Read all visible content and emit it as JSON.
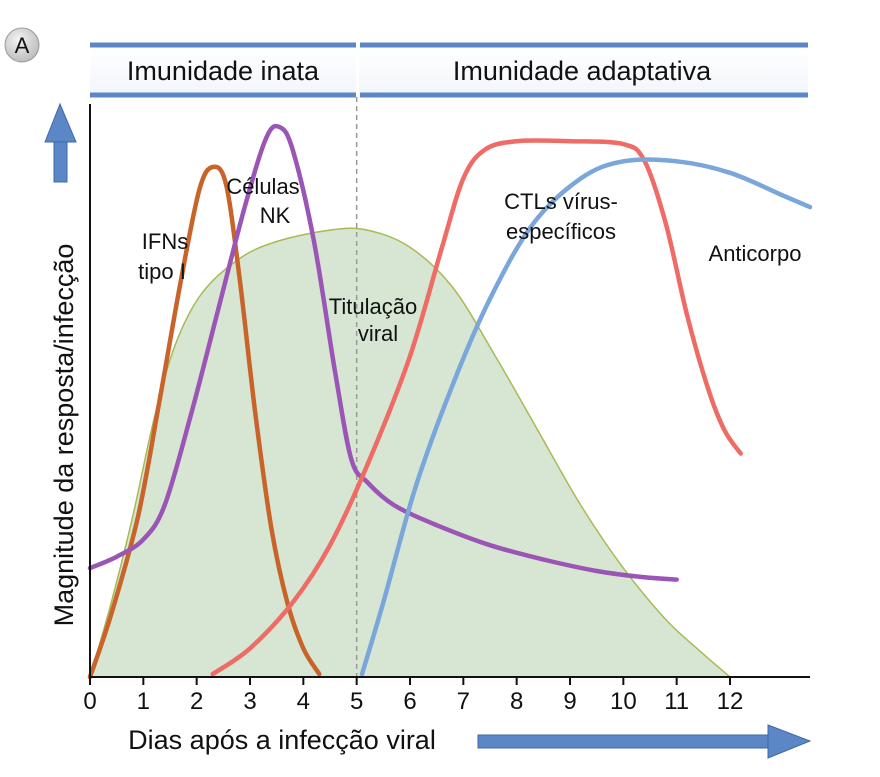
{
  "panel_label": "A",
  "phases": {
    "innate": "Imunidade inata",
    "adaptive": "Imunidade adaptativa"
  },
  "colors": {
    "ifn": "#c8642a",
    "nk": "#9b55b5",
    "viral_fill": "#d6e6d3",
    "viral_stroke": "#a8ba55",
    "ctl": "#ef6b66",
    "antibody": "#7aa6da",
    "arrow": "#5b87c7",
    "phase_bar": "#5b87c7"
  },
  "chart_data": {
    "type": "line",
    "xlabel": "Dias após a infecção viral",
    "ylabel": "Magnitude da resposta/infecção",
    "xlim": [
      0,
      13.5
    ],
    "ylim": [
      0,
      10
    ],
    "x_ticks": [
      0,
      1,
      2,
      3,
      4,
      5,
      6,
      7,
      8,
      9,
      10,
      11,
      12
    ],
    "phase_divider_x": 5,
    "grid": false,
    "series": [
      {
        "key": "ifn",
        "labels": [
          "IFNs",
          "tipo I"
        ],
        "style": "line",
        "points": [
          [
            0,
            0
          ],
          [
            0.4,
            1.1
          ],
          [
            0.9,
            2.8
          ],
          [
            1.3,
            4.8
          ],
          [
            1.7,
            6.9
          ],
          [
            2.05,
            8.5
          ],
          [
            2.3,
            8.9
          ],
          [
            2.55,
            8.6
          ],
          [
            2.8,
            7.0
          ],
          [
            3.1,
            4.6
          ],
          [
            3.4,
            2.6
          ],
          [
            3.7,
            1.3
          ],
          [
            4.0,
            0.5
          ],
          [
            4.3,
            0.05
          ]
        ]
      },
      {
        "key": "nk",
        "labels": [
          "Células",
          "NK"
        ],
        "style": "line",
        "points": [
          [
            0,
            1.9
          ],
          [
            0.5,
            2.1
          ],
          [
            1.0,
            2.4
          ],
          [
            1.4,
            3.0
          ],
          [
            1.9,
            4.6
          ],
          [
            2.4,
            6.4
          ],
          [
            2.9,
            8.2
          ],
          [
            3.3,
            9.4
          ],
          [
            3.55,
            9.6
          ],
          [
            3.8,
            9.2
          ],
          [
            4.2,
            7.6
          ],
          [
            4.6,
            5.3
          ],
          [
            4.9,
            3.8
          ],
          [
            5.2,
            3.4
          ],
          [
            5.7,
            3.0
          ],
          [
            6.5,
            2.65
          ],
          [
            7.5,
            2.3
          ],
          [
            8.5,
            2.05
          ],
          [
            9.5,
            1.85
          ],
          [
            10.3,
            1.75
          ],
          [
            11.0,
            1.7
          ]
        ]
      },
      {
        "key": "viral",
        "labels": [
          "Titulação",
          "viral"
        ],
        "style": "area",
        "points": [
          [
            0,
            0
          ],
          [
            0.4,
            1.3
          ],
          [
            0.8,
            2.8
          ],
          [
            1.2,
            4.5
          ],
          [
            1.6,
            5.8
          ],
          [
            2.1,
            6.7
          ],
          [
            2.8,
            7.3
          ],
          [
            3.5,
            7.6
          ],
          [
            4.5,
            7.8
          ],
          [
            5.2,
            7.8
          ],
          [
            6.0,
            7.5
          ],
          [
            6.8,
            6.8
          ],
          [
            7.6,
            5.6
          ],
          [
            8.4,
            4.3
          ],
          [
            9.2,
            3.0
          ],
          [
            10.0,
            1.9
          ],
          [
            10.8,
            1.0
          ],
          [
            11.5,
            0.4
          ],
          [
            12.0,
            0.0
          ]
        ]
      },
      {
        "key": "ctl",
        "labels": [
          "CTLs vírus-",
          "específicos"
        ],
        "style": "line",
        "points": [
          [
            2.3,
            0.05
          ],
          [
            3.0,
            0.5
          ],
          [
            3.8,
            1.3
          ],
          [
            4.5,
            2.3
          ],
          [
            5.2,
            3.7
          ],
          [
            6.0,
            5.6
          ],
          [
            6.6,
            7.5
          ],
          [
            7.0,
            8.7
          ],
          [
            7.4,
            9.2
          ],
          [
            8.0,
            9.35
          ],
          [
            9.0,
            9.35
          ],
          [
            10.0,
            9.3
          ],
          [
            10.4,
            9.0
          ],
          [
            10.8,
            7.9
          ],
          [
            11.2,
            6.3
          ],
          [
            11.6,
            5.0
          ],
          [
            11.9,
            4.3
          ],
          [
            12.2,
            3.9
          ]
        ]
      },
      {
        "key": "antibody",
        "labels": [
          "Anticorpo"
        ],
        "style": "line",
        "points": [
          [
            5.1,
            0.05
          ],
          [
            5.5,
            1.3
          ],
          [
            6.1,
            3.3
          ],
          [
            6.8,
            5.1
          ],
          [
            7.5,
            6.6
          ],
          [
            8.3,
            7.9
          ],
          [
            9.2,
            8.7
          ],
          [
            10.0,
            9.0
          ],
          [
            11.0,
            9.0
          ],
          [
            12.0,
            8.8
          ],
          [
            13.0,
            8.4
          ],
          [
            13.5,
            8.2
          ]
        ]
      }
    ]
  }
}
